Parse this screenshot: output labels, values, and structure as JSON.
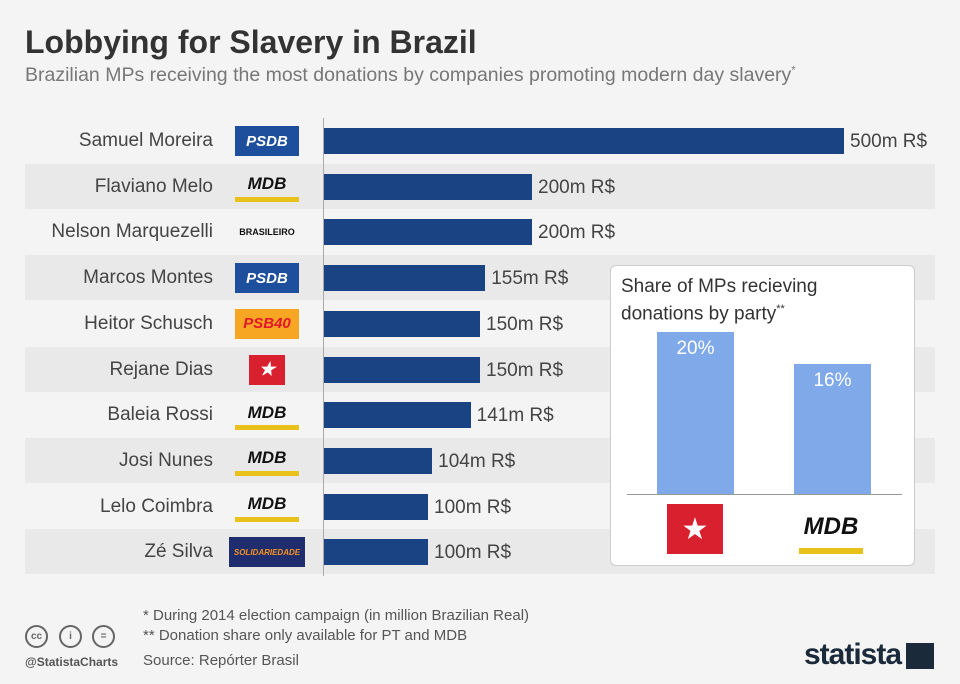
{
  "title": "Lobbying for Slavery in Brazil",
  "subtitle": "Brazilian MPs receiving the most donations by companies promoting modern day slavery",
  "subtitle_mark": "*",
  "chart_data": [
    {
      "type": "bar",
      "orientation": "horizontal",
      "unit": "m R$",
      "categories": [
        "Samuel Moreira",
        "Flaviano Melo",
        "Nelson Marquezelli",
        "Marcos Montes",
        "Heitor Schusch",
        "Rejane Dias",
        "Baleia Rossi",
        "Josi Nunes",
        "Lelo Coimbra",
        "Zé Silva"
      ],
      "parties": [
        "PSDB",
        "MDB",
        "PTB",
        "PSDB",
        "PSB 40",
        "PT",
        "MDB",
        "MDB",
        "MDB",
        "Solidariedade 77"
      ],
      "values": [
        500,
        200,
        200,
        155,
        150,
        150,
        141,
        104,
        100,
        100
      ],
      "labels": [
        "500m R$",
        "200m R$",
        "200m R$",
        "155m R$",
        "150m R$",
        "150m R$",
        "141m R$",
        "104m R$",
        "100m R$",
        "100m R$"
      ],
      "xlim": [
        0,
        500
      ],
      "color": "#1a4384"
    },
    {
      "type": "bar",
      "title": "Share of MPs recieving donations by party",
      "title_mark": "**",
      "categories": [
        "PT",
        "MDB"
      ],
      "values": [
        20,
        16
      ],
      "labels": [
        "20%",
        "16%"
      ],
      "ylim": [
        0,
        20
      ],
      "color": "#7fa9e8"
    }
  ],
  "logo_text": {
    "PSDB": "PSDB",
    "MDB": "MDB",
    "PTB": "BRASILEIRO",
    "PSB": "PSB40",
    "PT": "PT",
    "SD": "SOLIDARIEDADE"
  },
  "footnotes": [
    "*   During 2014 election campaign (in million Brazilian Real)",
    "** Donation share only available for PT and MDB"
  ],
  "source": "Source: Repórter Brasil",
  "handle": "@StatistaCharts",
  "brand": "statista"
}
